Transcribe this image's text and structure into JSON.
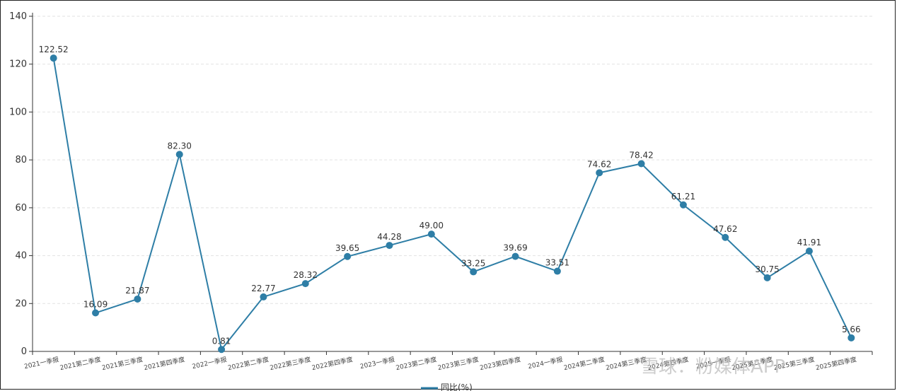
{
  "chart_data": {
    "type": "line",
    "categories": [
      "2021一季报",
      "2021第二季度",
      "2021第三季度",
      "2021第四季度",
      "2022一季报",
      "2022第二季度",
      "2022第三季度",
      "2022第四季度",
      "2023一季报",
      "2023第二季度",
      "2023第三季度",
      "2023第四季度",
      "2024一季报",
      "2024第二季度",
      "2024第三季度",
      "2024第四季度",
      "2025一季报",
      "2025第二季度",
      "2025第三季度",
      "2025第四季度"
    ],
    "series": [
      {
        "name": "同比(%)",
        "color": "#2e7ea6",
        "values": [
          122.52,
          16.09,
          21.87,
          82.3,
          0.81,
          22.77,
          28.32,
          39.65,
          44.28,
          49.0,
          33.25,
          39.69,
          33.51,
          74.62,
          78.42,
          61.21,
          47.62,
          30.75,
          41.91,
          5.66
        ],
        "labels": [
          "122.52",
          "16.09",
          "21.87",
          "82.30",
          "0.81",
          "22.77",
          "28.32",
          "39.65",
          "44.28",
          "49.00",
          "33.25",
          "39.69",
          "33.51",
          "74.62",
          "78.42",
          "61.21",
          "47.62",
          "30.75",
          "41.91",
          "5.66"
        ]
      }
    ],
    "y_ticks": [
      "0",
      "20",
      "40",
      "60",
      "80",
      "100",
      "120",
      "140"
    ],
    "ylim": [
      0,
      140
    ],
    "grid": true,
    "legend_position": "bottom-center",
    "watermark": "雪球：粉媒体APP"
  }
}
